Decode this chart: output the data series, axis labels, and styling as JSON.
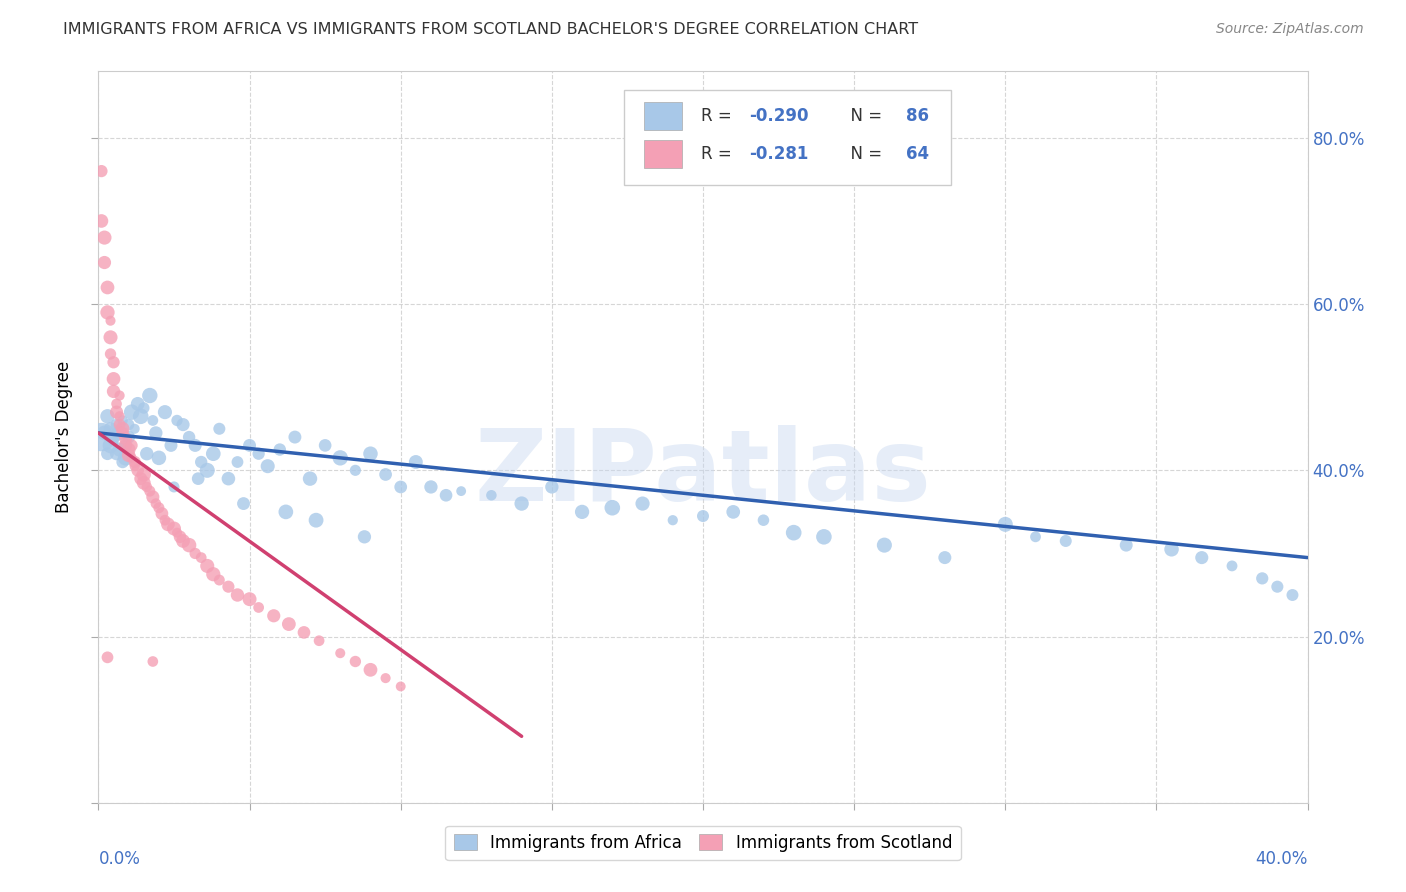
{
  "title": "IMMIGRANTS FROM AFRICA VS IMMIGRANTS FROM SCOTLAND BACHELOR'S DEGREE CORRELATION CHART",
  "source": "Source: ZipAtlas.com",
  "ylabel": "Bachelor's Degree",
  "xlim": [
    0.0,
    0.4
  ],
  "ylim": [
    0.0,
    0.88
  ],
  "color_africa": "#a8c8e8",
  "color_scotland": "#f4a0b5",
  "color_africa_line": "#3060b0",
  "color_scotland_line": "#d04070",
  "color_text_blue": "#4472C4",
  "watermark": "ZIPatlas",
  "africa_line_x0": 0.0,
  "africa_line_y0": 0.445,
  "africa_line_x1": 0.4,
  "africa_line_y1": 0.295,
  "scotland_line_x0": 0.0,
  "scotland_line_y0": 0.445,
  "scotland_line_x1": 0.14,
  "scotland_line_y1": 0.08,
  "africa_x": [
    0.001,
    0.002,
    0.003,
    0.003,
    0.004,
    0.004,
    0.005,
    0.005,
    0.006,
    0.006,
    0.007,
    0.007,
    0.008,
    0.008,
    0.009,
    0.009,
    0.01,
    0.01,
    0.011,
    0.012,
    0.013,
    0.014,
    0.015,
    0.016,
    0.017,
    0.018,
    0.019,
    0.02,
    0.022,
    0.024,
    0.026,
    0.028,
    0.03,
    0.032,
    0.034,
    0.036,
    0.038,
    0.04,
    0.043,
    0.046,
    0.05,
    0.053,
    0.056,
    0.06,
    0.065,
    0.07,
    0.075,
    0.08,
    0.085,
    0.09,
    0.095,
    0.1,
    0.105,
    0.11,
    0.115,
    0.12,
    0.13,
    0.14,
    0.15,
    0.16,
    0.17,
    0.18,
    0.19,
    0.2,
    0.21,
    0.22,
    0.23,
    0.24,
    0.26,
    0.28,
    0.3,
    0.31,
    0.32,
    0.34,
    0.355,
    0.365,
    0.375,
    0.385,
    0.39,
    0.395,
    0.025,
    0.033,
    0.048,
    0.062,
    0.072,
    0.088
  ],
  "africa_y": [
    0.44,
    0.445,
    0.42,
    0.465,
    0.43,
    0.45,
    0.44,
    0.435,
    0.455,
    0.42,
    0.425,
    0.445,
    0.41,
    0.46,
    0.43,
    0.415,
    0.455,
    0.44,
    0.47,
    0.45,
    0.48,
    0.465,
    0.475,
    0.42,
    0.49,
    0.46,
    0.445,
    0.415,
    0.47,
    0.43,
    0.46,
    0.455,
    0.44,
    0.43,
    0.41,
    0.4,
    0.42,
    0.45,
    0.39,
    0.41,
    0.43,
    0.42,
    0.405,
    0.425,
    0.44,
    0.39,
    0.43,
    0.415,
    0.4,
    0.42,
    0.395,
    0.38,
    0.41,
    0.38,
    0.37,
    0.375,
    0.37,
    0.36,
    0.38,
    0.35,
    0.355,
    0.36,
    0.34,
    0.345,
    0.35,
    0.34,
    0.325,
    0.32,
    0.31,
    0.295,
    0.335,
    0.32,
    0.315,
    0.31,
    0.305,
    0.295,
    0.285,
    0.27,
    0.26,
    0.25,
    0.38,
    0.39,
    0.36,
    0.35,
    0.34,
    0.32
  ],
  "africa_sizes": [
    400,
    80,
    70,
    80,
    70,
    80,
    75,
    80,
    75,
    70,
    80,
    70,
    75,
    80,
    70,
    75,
    80,
    75,
    70,
    80,
    75,
    80,
    70,
    75,
    80,
    75,
    70,
    80,
    75,
    70,
    75,
    80,
    70,
    75,
    80,
    70,
    75,
    80,
    70,
    75,
    70,
    75,
    80,
    70,
    75,
    80,
    70,
    75,
    80,
    70,
    75,
    80,
    70,
    75,
    70,
    75,
    80,
    70,
    75,
    80,
    70,
    75,
    80,
    70,
    75,
    70,
    75,
    80,
    70,
    75,
    80,
    70,
    75,
    70,
    75,
    80,
    70,
    75,
    70,
    75,
    75,
    70,
    80,
    75,
    70,
    75
  ],
  "scotland_x": [
    0.001,
    0.001,
    0.002,
    0.002,
    0.003,
    0.003,
    0.004,
    0.004,
    0.004,
    0.005,
    0.005,
    0.005,
    0.006,
    0.006,
    0.007,
    0.007,
    0.008,
    0.008,
    0.009,
    0.009,
    0.01,
    0.01,
    0.011,
    0.011,
    0.012,
    0.012,
    0.013,
    0.014,
    0.015,
    0.015,
    0.016,
    0.017,
    0.018,
    0.019,
    0.02,
    0.021,
    0.022,
    0.023,
    0.025,
    0.026,
    0.027,
    0.028,
    0.03,
    0.032,
    0.034,
    0.036,
    0.038,
    0.04,
    0.043,
    0.046,
    0.05,
    0.053,
    0.058,
    0.063,
    0.068,
    0.073,
    0.08,
    0.085,
    0.09,
    0.095,
    0.1,
    0.003,
    0.007,
    0.018
  ],
  "scotland_y": [
    0.76,
    0.7,
    0.68,
    0.65,
    0.62,
    0.59,
    0.58,
    0.56,
    0.54,
    0.53,
    0.51,
    0.495,
    0.48,
    0.47,
    0.465,
    0.455,
    0.45,
    0.445,
    0.438,
    0.43,
    0.425,
    0.418,
    0.415,
    0.43,
    0.41,
    0.405,
    0.4,
    0.39,
    0.385,
    0.395,
    0.38,
    0.375,
    0.368,
    0.36,
    0.355,
    0.348,
    0.34,
    0.335,
    0.33,
    0.325,
    0.32,
    0.315,
    0.31,
    0.3,
    0.295,
    0.285,
    0.275,
    0.268,
    0.26,
    0.25,
    0.245,
    0.235,
    0.225,
    0.215,
    0.205,
    0.195,
    0.18,
    0.17,
    0.16,
    0.15,
    0.14,
    0.175,
    0.49,
    0.17
  ]
}
